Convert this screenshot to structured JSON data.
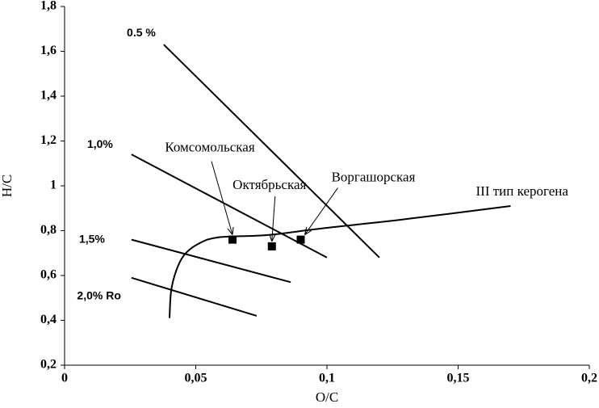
{
  "chart_data": {
    "type": "scatter",
    "xlabel": "O/C",
    "ylabel": "H/C",
    "xlim": [
      0,
      0.2
    ],
    "ylim": [
      0.2,
      1.8
    ],
    "xticks": [
      0,
      {
        "value": 0.05,
        "label": "0,05"
      },
      {
        "value": 0.1,
        "label": "0,1"
      },
      {
        "value": 0.15,
        "label": "0,15"
      },
      {
        "value": 0.2,
        "label": "0,2"
      }
    ],
    "yticks": [
      {
        "value": 0.2,
        "label": "0,2"
      },
      {
        "value": 0.4,
        "label": "0,4"
      },
      {
        "value": 0.6,
        "label": "0,6"
      },
      {
        "value": 0.8,
        "label": "0,8"
      },
      1,
      {
        "value": 1.2,
        "label": "1,2"
      },
      {
        "value": 1.4,
        "label": "1,4"
      },
      {
        "value": 1.6,
        "label": "1,6"
      },
      {
        "value": 1.8,
        "label": "1,8"
      }
    ],
    "color": "#000000",
    "reflectance_lines": [
      {
        "name": "0.5 %",
        "x": [
          0.0378,
          0.12
        ],
        "y": [
          1.63,
          0.68
        ]
      },
      {
        "name": "1,0%",
        "x": [
          0.0255,
          0.1
        ],
        "y": [
          1.14,
          0.68
        ]
      },
      {
        "name": "1,5%",
        "x": [
          0.0255,
          0.0862
        ],
        "y": [
          0.76,
          0.57
        ]
      },
      {
        "name": "2,0% Ro",
        "x": [
          0.0255,
          0.0732
        ],
        "y": [
          0.59,
          0.42
        ]
      }
    ],
    "kerogen_curve": {
      "name": "III тип керогена",
      "x": [
        0.04,
        0.0406,
        0.0425,
        0.0455,
        0.0508,
        0.0585,
        0.077,
        0.098,
        0.129,
        0.17
      ],
      "y": [
        0.41,
        0.53,
        0.62,
        0.69,
        0.74,
        0.77,
        0.78,
        0.81,
        0.85,
        0.91
      ]
    },
    "samples": {
      "labels": [
        "Комсомольская",
        "Октябрьская",
        "Воргашорская"
      ],
      "x": [
        0.064,
        0.079,
        0.09
      ],
      "y": [
        0.76,
        0.73,
        0.76
      ]
    }
  }
}
